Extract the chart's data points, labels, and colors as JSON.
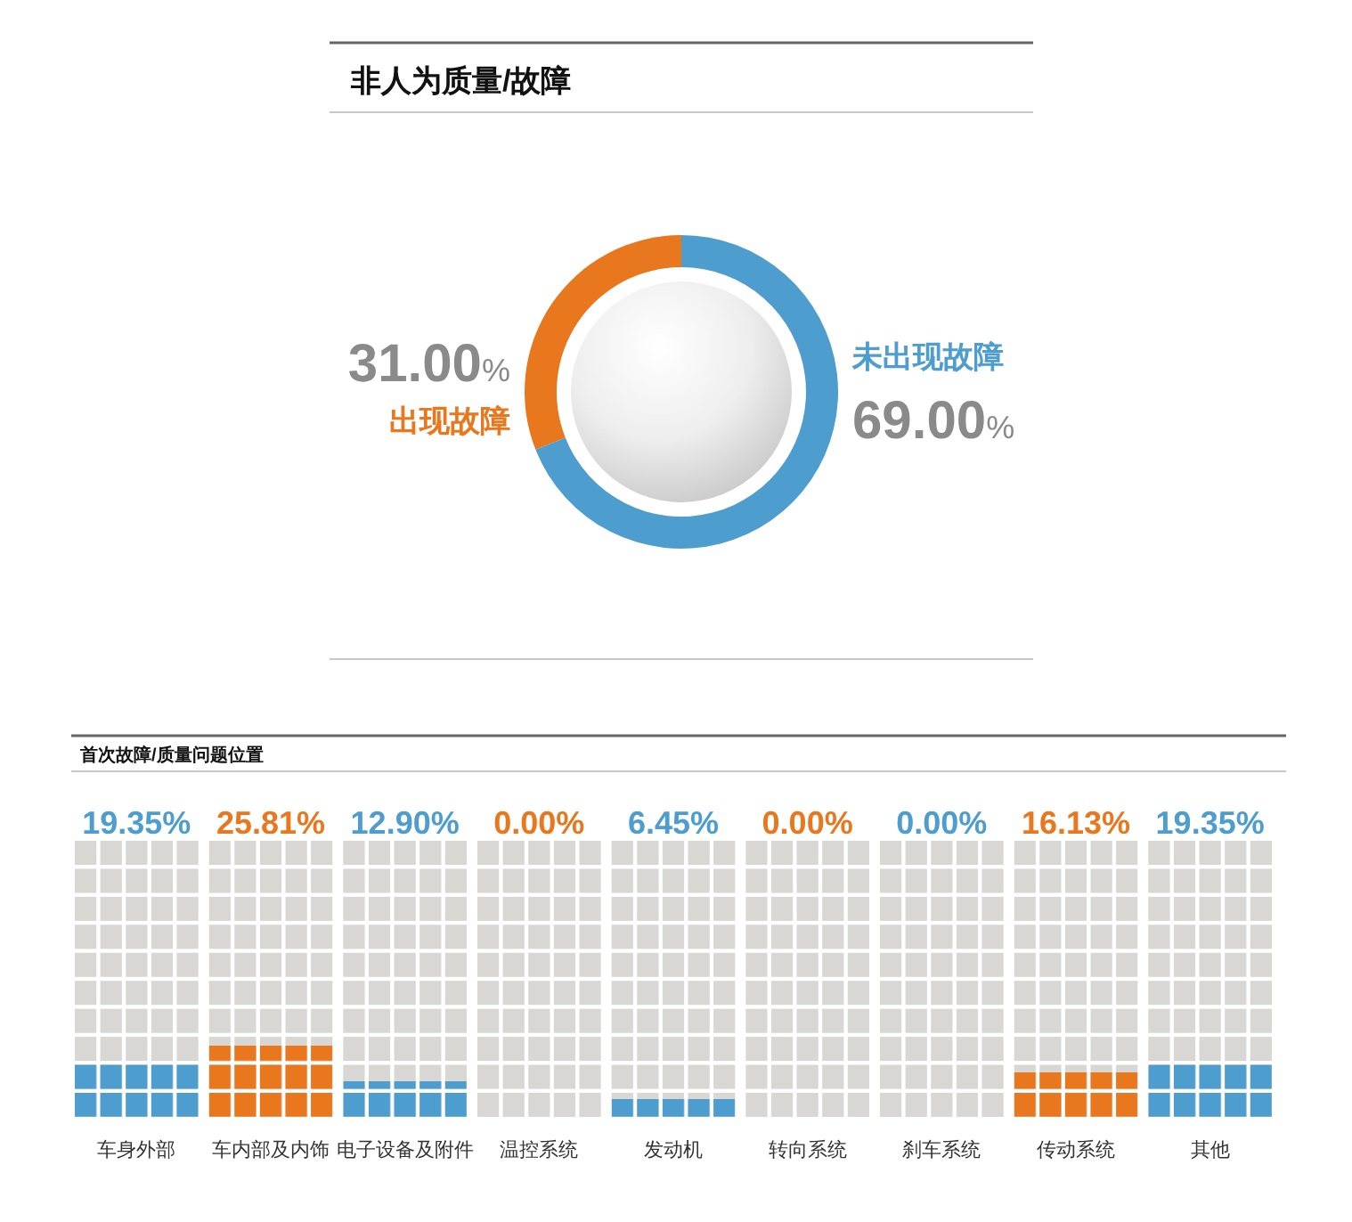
{
  "chart_data": [
    {
      "type": "donut",
      "title": "非人为质量/故障",
      "categories": [
        "出现故障",
        "未出现故障"
      ],
      "values": [
        31.0,
        69.0
      ],
      "colors": [
        "#e8771e",
        "#4d9dcf"
      ],
      "value_labels": [
        "31.00%",
        "69.00%"
      ]
    },
    {
      "type": "bar",
      "title": "首次故障/质量问题位置",
      "categories": [
        "车身外部",
        "车内部及内饰",
        "电子设备及附件",
        "温控系统",
        "发动机",
        "转向系统",
        "刹车系统",
        "传动系统",
        "其他"
      ],
      "values": [
        19.35,
        25.81,
        12.9,
        0.0,
        6.45,
        0.0,
        0.0,
        16.13,
        19.35
      ],
      "colors": [
        "#4d9dcf",
        "#e8771e",
        "#4d9dcf",
        "#e8771e",
        "#4d9dcf",
        "#e8771e",
        "#4d9dcf",
        "#e8771e",
        "#4d9dcf"
      ],
      "value_labels": [
        "19.35%",
        "25.81%",
        "12.90%",
        "0.00%",
        "6.45%",
        "0.00%",
        "0.00%",
        "16.13%",
        "19.35%"
      ],
      "tick_labels": "x"
    }
  ]
}
